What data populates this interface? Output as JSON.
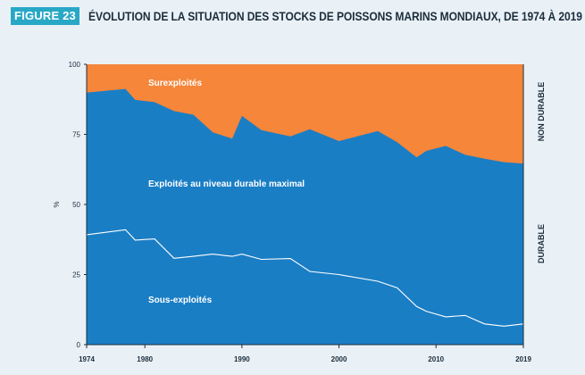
{
  "figure": {
    "badge": "FIGURE 23",
    "title": "ÉVOLUTION DE LA SITUATION DES STOCKS DE POISSONS MARINS MONDIAUX, DE 1974 À 2019"
  },
  "colors": {
    "background": "#eaf1f6",
    "overexploited": "#f5863a",
    "fully_exploited": "#1a7ec5",
    "underexploited": "#1a7ec5",
    "boundary_line": "#ffffff",
    "badge": "#29a8c6",
    "text": "#1b2d3c"
  },
  "chart_data": {
    "type": "area",
    "stacked": true,
    "title": "ÉVOLUTION DE LA SITUATION DES STOCKS DE POISSONS MARINS MONDIAUX, DE 1974 À 2019",
    "ylabel": "%",
    "xlabel": "",
    "xlim": [
      1974,
      2019
    ],
    "ylim": [
      0,
      100
    ],
    "x_ticks": [
      "1974",
      "1980",
      "1990",
      "2000",
      "2010",
      "2019"
    ],
    "y_ticks": [
      "0",
      "25",
      "50",
      "75",
      "100"
    ],
    "grid": false,
    "x": [
      1974,
      1978,
      1979,
      1981,
      1983,
      1985,
      1987,
      1989,
      1990,
      1992,
      1995,
      1997,
      2000,
      2004,
      2006,
      2008,
      2009,
      2011,
      2013,
      2015,
      2017,
      2019
    ],
    "series": [
      {
        "name": "Sous-exploités",
        "values": [
          39.2,
          41.0,
          37.3,
          37.7,
          30.8,
          31.5,
          32.3,
          31.5,
          32.3,
          30.4,
          30.7,
          26.1,
          25.0,
          22.6,
          20.3,
          13.6,
          11.9,
          9.9,
          10.4,
          7.4,
          6.6,
          7.4
        ]
      },
      {
        "name": "Exploités au niveau durable maximal",
        "values": [
          50.7,
          50.2,
          50.0,
          48.8,
          52.5,
          50.5,
          43.4,
          42.0,
          49.3,
          46.1,
          43.6,
          50.7,
          47.6,
          53.6,
          51.9,
          53.2,
          57.2,
          61.0,
          57.3,
          58.9,
          58.5,
          57.2
        ]
      },
      {
        "name": "Surexploités",
        "values": [
          10.1,
          8.8,
          12.7,
          13.5,
          16.7,
          18.0,
          24.3,
          26.5,
          18.4,
          23.5,
          25.7,
          23.2,
          27.4,
          23.8,
          27.8,
          33.2,
          30.9,
          29.1,
          32.3,
          33.7,
          34.9,
          35.4
        ]
      }
    ],
    "area_labels": {
      "overexploited": "Surexploités",
      "fully_exploited": "Exploités au niveau durable maximal",
      "underexploited": "Sous-exploités"
    },
    "side_labels": {
      "top": "NON DURABLE",
      "bottom": "DURABLE"
    }
  }
}
